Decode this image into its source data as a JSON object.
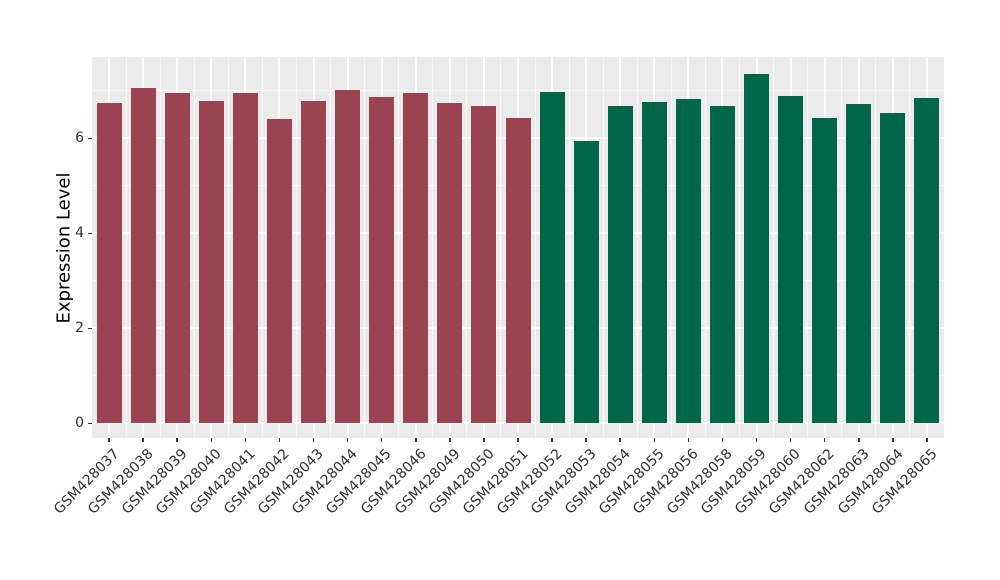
{
  "chart_data": {
    "type": "bar",
    "title": "",
    "xlabel": "",
    "ylabel": "Expression Level",
    "legend": "none",
    "grid": "white major and minor gridlines on gray panel",
    "panel_background": "#EBEBEB",
    "gridline_color": "#FFFFFF",
    "axis_text_color": "#303030",
    "yticks": [
      0,
      2,
      4,
      6
    ],
    "minor_yticks": [
      1,
      3,
      5,
      7
    ],
    "ylim": [
      -0.31,
      7.71
    ],
    "group_colors": {
      "group1": "#9B4351",
      "group2": "#006648"
    },
    "bars": [
      {
        "label": "GSM428037",
        "value": 6.75,
        "group": "group1"
      },
      {
        "label": "GSM428038",
        "value": 7.06,
        "group": "group1"
      },
      {
        "label": "GSM428039",
        "value": 6.95,
        "group": "group1"
      },
      {
        "label": "GSM428040",
        "value": 6.78,
        "group": "group1"
      },
      {
        "label": "GSM428041",
        "value": 6.95,
        "group": "group1"
      },
      {
        "label": "GSM428042",
        "value": 6.4,
        "group": "group1"
      },
      {
        "label": "GSM428043",
        "value": 6.78,
        "group": "group1"
      },
      {
        "label": "GSM428044",
        "value": 7.02,
        "group": "group1"
      },
      {
        "label": "GSM428045",
        "value": 6.87,
        "group": "group1"
      },
      {
        "label": "GSM428046",
        "value": 6.96,
        "group": "group1"
      },
      {
        "label": "GSM428049",
        "value": 6.74,
        "group": "group1"
      },
      {
        "label": "GSM428050",
        "value": 6.68,
        "group": "group1"
      },
      {
        "label": "GSM428051",
        "value": 6.43,
        "group": "group1"
      },
      {
        "label": "GSM428052",
        "value": 6.98,
        "group": "group2"
      },
      {
        "label": "GSM428053",
        "value": 5.95,
        "group": "group2"
      },
      {
        "label": "GSM428054",
        "value": 6.68,
        "group": "group2"
      },
      {
        "label": "GSM428055",
        "value": 6.77,
        "group": "group2"
      },
      {
        "label": "GSM428056",
        "value": 6.83,
        "group": "group2"
      },
      {
        "label": "GSM428058",
        "value": 6.68,
        "group": "group2"
      },
      {
        "label": "GSM428059",
        "value": 7.36,
        "group": "group2"
      },
      {
        "label": "GSM428060",
        "value": 6.9,
        "group": "group2"
      },
      {
        "label": "GSM428062",
        "value": 6.43,
        "group": "group2"
      },
      {
        "label": "GSM428063",
        "value": 6.72,
        "group": "group2"
      },
      {
        "label": "GSM428064",
        "value": 6.53,
        "group": "group2"
      },
      {
        "label": "GSM428065",
        "value": 6.85,
        "group": "group2"
      }
    ]
  }
}
